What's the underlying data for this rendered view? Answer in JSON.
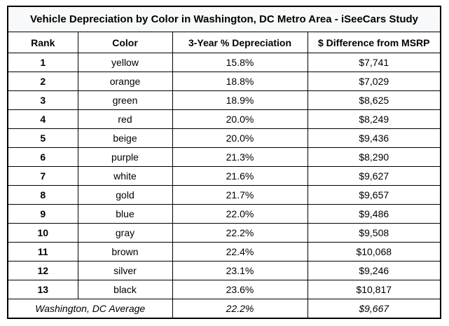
{
  "chart_data": {
    "type": "table",
    "title": "Vehicle Depreciation by Color in Washington, DC Metro Area - iSeeCars Study",
    "columns": [
      "Rank",
      "Color",
      "3-Year % Depreciation",
      "$ Difference from MSRP"
    ],
    "rows": [
      [
        "1",
        "yellow",
        "15.8%",
        "$7,741"
      ],
      [
        "2",
        "orange",
        "18.8%",
        "$7,029"
      ],
      [
        "3",
        "green",
        "18.9%",
        "$8,625"
      ],
      [
        "4",
        "red",
        "20.0%",
        "$8,249"
      ],
      [
        "5",
        "beige",
        "20.0%",
        "$9,436"
      ],
      [
        "6",
        "purple",
        "21.3%",
        "$8,290"
      ],
      [
        "7",
        "white",
        "21.6%",
        "$9,627"
      ],
      [
        "8",
        "gold",
        "21.7%",
        "$9,657"
      ],
      [
        "9",
        "blue",
        "22.0%",
        "$9,486"
      ],
      [
        "10",
        "gray",
        "22.2%",
        "$9,508"
      ],
      [
        "11",
        "brown",
        "22.4%",
        "$10,068"
      ],
      [
        "12",
        "silver",
        "23.1%",
        "$9,246"
      ],
      [
        "13",
        "black",
        "23.6%",
        "$10,817"
      ]
    ],
    "average_row": [
      "Washington, DC Average",
      "22.2%",
      "$9,667"
    ],
    "layout": {
      "border_color": "#000000",
      "title_background": "#f8f9fa",
      "row_background": "#ffffff"
    }
  }
}
